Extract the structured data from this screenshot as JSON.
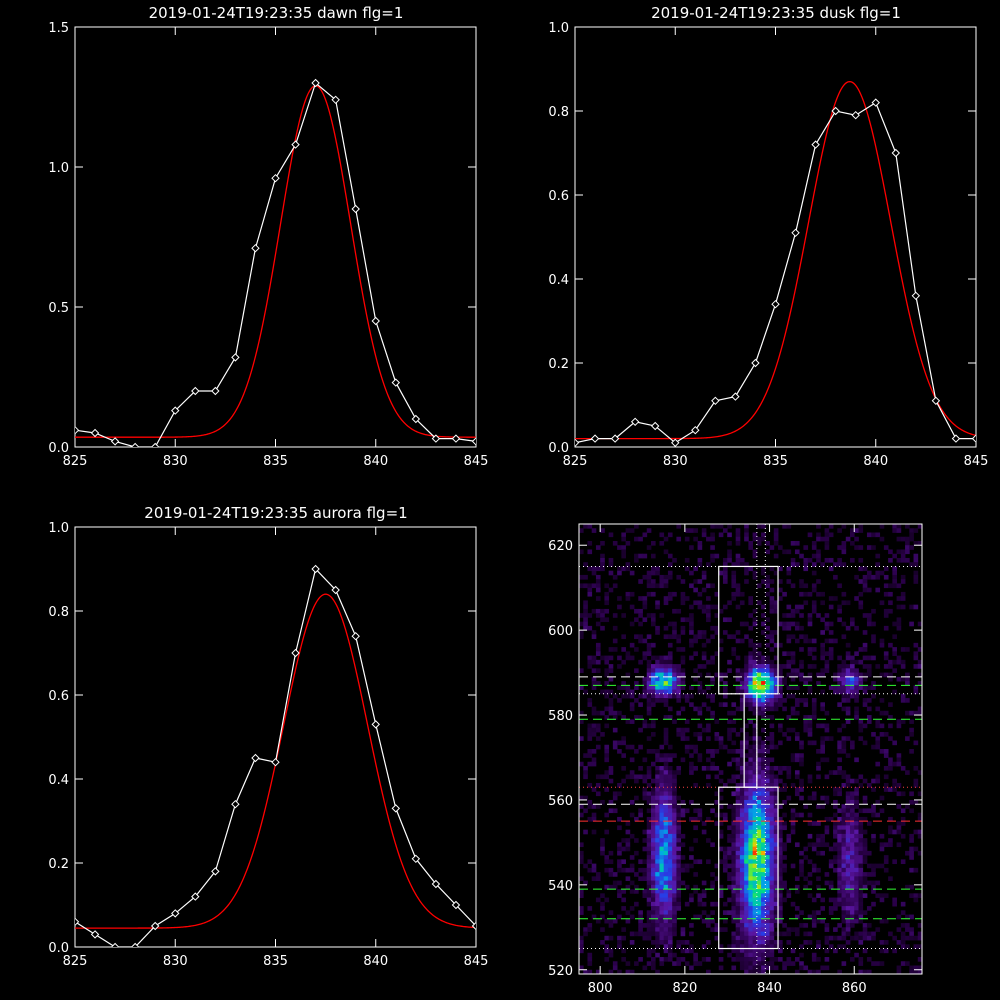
{
  "colors": {
    "background": "#000000",
    "axes": "#ffffff",
    "data_line": "#ffffff",
    "fit_line": "#ff0000"
  },
  "chart_data": [
    {
      "id": "dawn",
      "type": "line",
      "title": "2019-01-24T19:23:35 dawn flg=1",
      "xlim": [
        825,
        845
      ],
      "ylim": [
        0,
        1.5
      ],
      "xticks": [
        "825",
        "830",
        "835",
        "840",
        "845"
      ],
      "xtick_values": [
        825,
        830,
        835,
        840,
        845
      ],
      "yticks": [
        "0.0",
        "0.5",
        "1.0",
        "1.5"
      ],
      "ytick_values": [
        0,
        0.5,
        1.0,
        1.5
      ],
      "series": [
        {
          "kind": "data",
          "color": "#ffffff",
          "marker": "diamond",
          "x": [
            825,
            826,
            827,
            828,
            829,
            830,
            831,
            832,
            833,
            834,
            835,
            836,
            837,
            838,
            839,
            840,
            841,
            842,
            843,
            844,
            845
          ],
          "y": [
            0.06,
            0.05,
            0.02,
            0.0,
            0.0,
            0.13,
            0.2,
            0.2,
            0.32,
            0.71,
            0.96,
            1.08,
            1.3,
            1.24,
            0.85,
            0.45,
            0.23,
            0.1,
            0.03,
            0.03,
            0.02
          ]
        },
        {
          "kind": "fit",
          "color": "#ff0000",
          "baseline": 0.035,
          "amplitude": 1.255,
          "center": 837.0,
          "sigma": 1.75
        }
      ]
    },
    {
      "id": "dusk",
      "type": "line",
      "title": "2019-01-24T19:23:35 dusk flg=1",
      "xlim": [
        825,
        845
      ],
      "ylim": [
        0,
        1.0
      ],
      "xticks": [
        "825",
        "830",
        "835",
        "840",
        "845"
      ],
      "xtick_values": [
        825,
        830,
        835,
        840,
        845
      ],
      "yticks": [
        "0.0",
        "0.2",
        "0.4",
        "0.6",
        "0.8",
        "1.0"
      ],
      "ytick_values": [
        0,
        0.2,
        0.4,
        0.6,
        0.8,
        1.0
      ],
      "series": [
        {
          "kind": "data",
          "color": "#ffffff",
          "marker": "diamond",
          "x": [
            825,
            826,
            827,
            828,
            829,
            830,
            831,
            832,
            833,
            834,
            835,
            836,
            837,
            838,
            839,
            840,
            841,
            842,
            843,
            844,
            845
          ],
          "y": [
            0.01,
            0.02,
            0.02,
            0.06,
            0.05,
            0.01,
            0.04,
            0.11,
            0.12,
            0.2,
            0.34,
            0.51,
            0.72,
            0.8,
            0.79,
            0.82,
            0.7,
            0.36,
            0.11,
            0.02,
            0.02
          ]
        },
        {
          "kind": "fit",
          "color": "#ff0000",
          "baseline": 0.02,
          "amplitude": 0.85,
          "center": 838.7,
          "sigma": 2.05
        }
      ]
    },
    {
      "id": "aurora",
      "type": "line",
      "title": "2019-01-24T19:23:35 aurora flg=1",
      "xlim": [
        825,
        845
      ],
      "ylim": [
        0,
        1.0
      ],
      "xticks": [
        "825",
        "830",
        "835",
        "840",
        "845"
      ],
      "xtick_values": [
        825,
        830,
        835,
        840,
        845
      ],
      "yticks": [
        "0.0",
        "0.2",
        "0.4",
        "0.6",
        "0.8",
        "1.0"
      ],
      "ytick_values": [
        0,
        0.2,
        0.4,
        0.6,
        0.8,
        1.0
      ],
      "series": [
        {
          "kind": "data",
          "color": "#ffffff",
          "marker": "diamond",
          "x": [
            825,
            826,
            827,
            828,
            829,
            830,
            831,
            832,
            833,
            834,
            835,
            836,
            837,
            838,
            839,
            840,
            841,
            842,
            843,
            844,
            845
          ],
          "y": [
            0.06,
            0.03,
            0.0,
            0.0,
            0.05,
            0.08,
            0.12,
            0.18,
            0.34,
            0.45,
            0.44,
            0.7,
            0.9,
            0.85,
            0.74,
            0.53,
            0.33,
            0.21,
            0.15,
            0.1,
            0.05
          ]
        },
        {
          "kind": "fit",
          "color": "#ff0000",
          "baseline": 0.045,
          "amplitude": 0.795,
          "center": 837.5,
          "sigma": 2.1
        }
      ]
    },
    {
      "id": "image",
      "type": "heatmap",
      "title": "",
      "xlim": [
        795,
        876
      ],
      "ylim": [
        519,
        625
      ],
      "xticks": [
        "800",
        "820",
        "840",
        "860"
      ],
      "xtick_values": [
        800,
        820,
        840,
        860
      ],
      "yticks": [
        "520",
        "540",
        "560",
        "580",
        "600",
        "620"
      ],
      "ytick_values": [
        520,
        540,
        560,
        580,
        600,
        620
      ],
      "blobs": [
        {
          "x": 815,
          "y": 588,
          "sx": 2.2,
          "sy": 2.2,
          "a": 0.65
        },
        {
          "x": 838,
          "y": 587,
          "sx": 2.2,
          "sy": 2.6,
          "a": 1.0
        },
        {
          "x": 859,
          "y": 588,
          "sx": 1.8,
          "sy": 2.0,
          "a": 0.35
        },
        {
          "x": 815,
          "y": 547,
          "sx": 1.9,
          "sy": 10.5,
          "a": 0.5
        },
        {
          "x": 837,
          "y": 546,
          "sx": 2.6,
          "sy": 11.5,
          "a": 0.78
        },
        {
          "x": 859,
          "y": 545,
          "sx": 1.9,
          "sy": 9.5,
          "a": 0.22
        }
      ],
      "boxes": [
        {
          "x0": 828,
          "x1": 842,
          "y0": 585,
          "y1": 615
        },
        {
          "x0": 828,
          "x1": 842,
          "y0": 525,
          "y1": 563
        }
      ],
      "connector": {
        "x0": 834,
        "x1": 837,
        "y0": 563,
        "y1": 585
      },
      "hlines": [
        {
          "y": 615,
          "color": "#ffffff",
          "style": "dotted"
        },
        {
          "y": 589,
          "color": "#ffffff",
          "style": "dashed"
        },
        {
          "y": 587,
          "color": "#33ff33",
          "style": "dashed"
        },
        {
          "y": 585,
          "color": "#ffffff",
          "style": "dotted"
        },
        {
          "y": 579,
          "color": "#33ff33",
          "style": "dashed"
        },
        {
          "y": 563,
          "color": "#ff4040",
          "style": "dotted"
        },
        {
          "y": 559,
          "color": "#ffffff",
          "style": "dashed"
        },
        {
          "y": 555,
          "color": "#ff3030",
          "style": "dashed"
        },
        {
          "y": 539,
          "color": "#33ff33",
          "style": "dashed"
        },
        {
          "y": 532,
          "color": "#33ff33",
          "style": "dashed"
        },
        {
          "y": 525,
          "color": "#ffffff",
          "style": "dotted"
        }
      ],
      "vlines": [
        {
          "x": 837,
          "color": "#ffffff",
          "style": "dotted"
        },
        {
          "x": 839,
          "color": "#ffffff",
          "style": "dotted"
        }
      ]
    }
  ]
}
